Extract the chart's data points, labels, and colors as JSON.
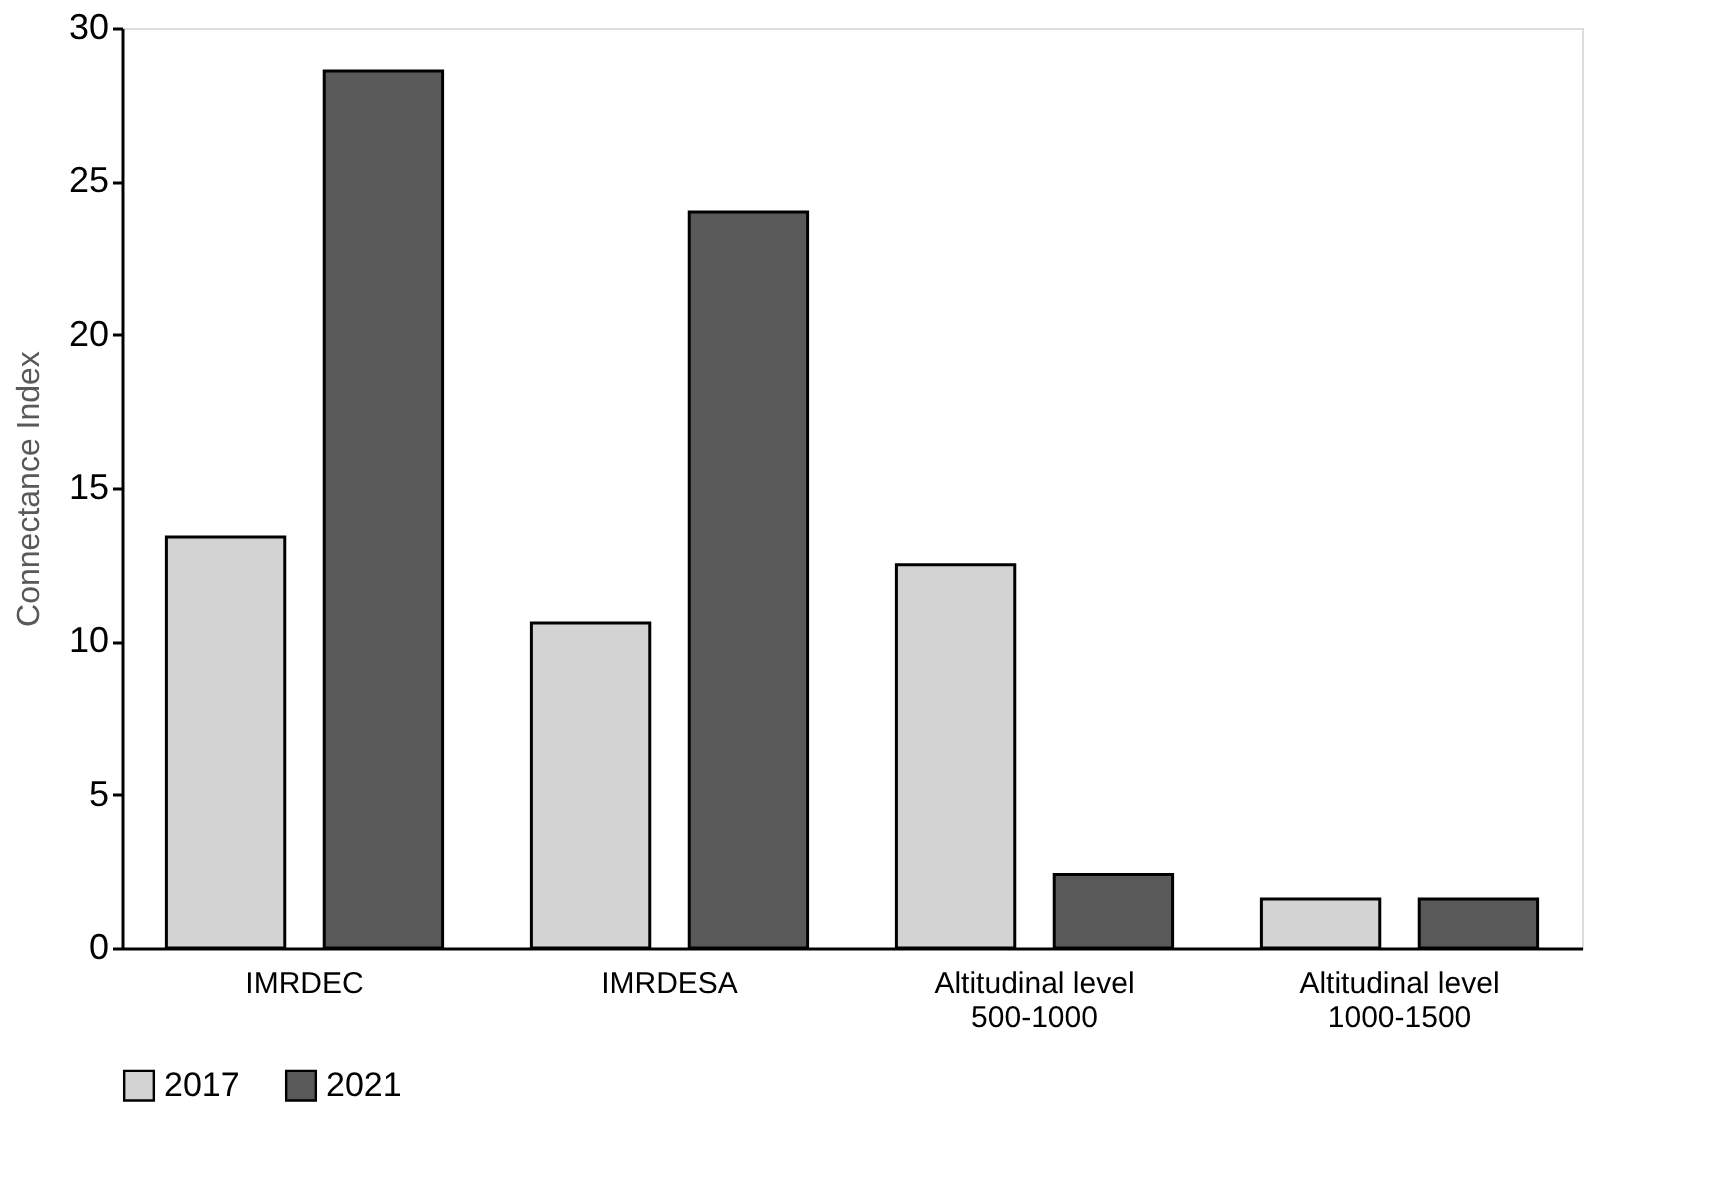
{
  "chart_data": {
    "type": "bar",
    "ylabel": "Connectance Index",
    "categories": [
      "IMRDEC",
      "IMRDESA",
      "Altitudinal level 500-1000",
      "Altitudinal level 1000-1500"
    ],
    "series": [
      {
        "name": "2017",
        "color": "#d3d3d3",
        "values": [
          13.4,
          10.6,
          12.5,
          1.6
        ]
      },
      {
        "name": "2021",
        "color": "#595959",
        "values": [
          28.6,
          24.0,
          2.4,
          1.6
        ]
      }
    ],
    "ylim": [
      0,
      30
    ],
    "yticks": [
      0,
      5,
      10,
      15,
      20,
      25,
      30
    ],
    "grid": false,
    "legend": "bottom"
  }
}
